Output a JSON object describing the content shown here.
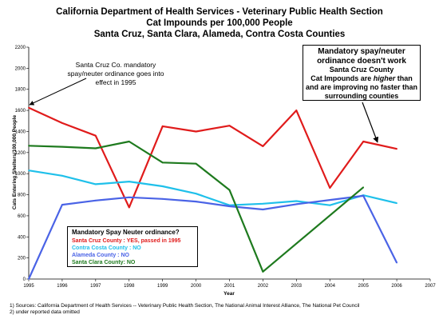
{
  "chart_data": {
    "type": "line",
    "title": "California Department of Health Services - Veterinary Public Health Section",
    "subtitle": "Cat Impounds per 100,000 People",
    "subtitle2": "Santa Cruz, Santa Clara, Alameda, Contra Costa Counties",
    "xlabel": "Year",
    "ylabel": "Cats Entering Shelters/100,000 People",
    "xlim": [
      1995,
      2007
    ],
    "ylim": [
      0,
      2200
    ],
    "xticks": [
      "1995",
      "1996",
      "1997",
      "1998",
      "1999",
      "2000",
      "2001",
      "2002",
      "2003",
      "2004",
      "2005",
      "2006",
      "2007"
    ],
    "yticks": [
      "0",
      "200",
      "400",
      "600",
      "800",
      "1000",
      "1200",
      "1400",
      "1600",
      "1800",
      "2000",
      "2200"
    ],
    "grid": false,
    "series": [
      {
        "key": "santa_cruz",
        "color": "#e01b1b",
        "x": [
          1995,
          1996,
          1997,
          1998,
          1999,
          2000,
          2001,
          2002,
          2003,
          2004,
          2005,
          2006
        ],
        "y": [
          1625,
          1480,
          1360,
          680,
          1450,
          1400,
          1455,
          1260,
          1600,
          865,
          1305,
          1235
        ]
      },
      {
        "key": "contra_costa",
        "color": "#1fc0ea",
        "x": [
          1995,
          1996,
          1997,
          1998,
          1999,
          2000,
          2001,
          2002,
          2003,
          2004,
          2005,
          2006
        ],
        "y": [
          1030,
          980,
          900,
          925,
          880,
          810,
          700,
          715,
          740,
          700,
          795,
          720
        ]
      },
      {
        "key": "alameda",
        "color": "#4a63e6",
        "x": [
          1995,
          1996,
          1997,
          1998,
          1999,
          2000,
          2001,
          2002,
          2003,
          2004,
          2005,
          2006
        ],
        "y": [
          0,
          705,
          745,
          775,
          760,
          735,
          690,
          660,
          710,
          750,
          790,
          155
        ]
      },
      {
        "key": "santa_clara",
        "color": "#1e7a1e",
        "x": [
          1995,
          1996,
          1997,
          1998,
          1999,
          2000,
          2001,
          2002,
          2005
        ],
        "y": [
          1265,
          1255,
          1240,
          1305,
          1105,
          1095,
          845,
          70,
          870
        ]
      }
    ]
  },
  "annotations": {
    "ordinance_note": [
      "Santa Cruz Co. mandatory",
      "spay/neuter ordinance goes into",
      "effect in 1995"
    ],
    "callout_lines": [
      "Mandatory spay/neuter",
      "ordinance doesn't work",
      "Santa Cruz County"
    ],
    "callout_pre": "Cat Impounds are ",
    "callout_em": "higher",
    "callout_post": " than",
    "callout_lines2": [
      "and are improving no faster than",
      "surrounding counties"
    ]
  },
  "legend": {
    "title": "Mandatory Spay Neuter ordinance?",
    "items": [
      {
        "text": "Santa Cruz County : YES, passed in 1995",
        "color": "#e01b1b"
      },
      {
        "text": "Contra Costa County : NO",
        "color": "#1fc0ea"
      },
      {
        "text": "Alameda County : NO",
        "color": "#4a63e6"
      },
      {
        "text": "Santa Clara County: NO",
        "color": "#1e7a1e"
      }
    ]
  },
  "footnotes": [
    "1) Sources: California Department of Health Services -- Veterinary Public Health Section, The National Animal Interest Alliance, The National Pet Council",
    "2) under reported data omitted"
  ]
}
